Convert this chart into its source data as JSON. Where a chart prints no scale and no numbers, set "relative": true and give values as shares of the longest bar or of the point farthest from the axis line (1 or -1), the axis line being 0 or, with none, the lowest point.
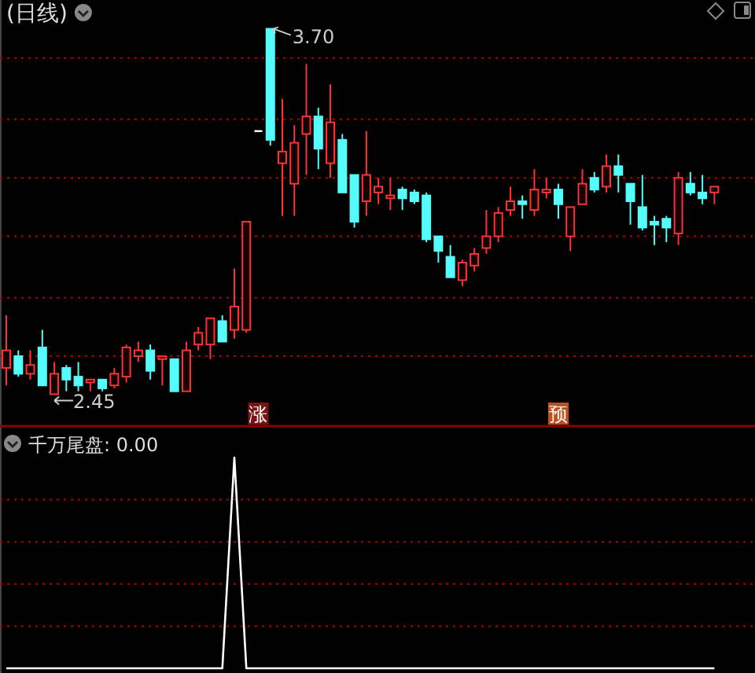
{
  "chart_data": [
    {
      "type": "candlestick",
      "title": "(日线)",
      "categories": [
        null,
        null,
        null,
        null,
        null,
        null,
        null,
        null,
        null,
        null,
        null,
        null,
        null,
        null,
        null,
        null,
        null,
        null,
        null,
        null,
        null,
        null,
        null,
        null,
        null,
        null,
        null,
        null,
        null,
        null,
        null,
        null,
        null,
        null,
        null,
        null,
        null,
        null,
        null,
        null,
        null,
        null,
        null,
        null,
        null,
        null,
        null,
        null,
        null,
        null,
        null,
        null,
        null,
        null,
        null,
        null,
        null,
        null,
        null,
        null
      ],
      "ohlc": [
        [
          2.54,
          2.72,
          2.48,
          2.6
        ],
        [
          2.58,
          2.6,
          2.51,
          2.52
        ],
        [
          2.52,
          2.6,
          2.5,
          2.55
        ],
        [
          2.61,
          2.67,
          2.48,
          2.48
        ],
        [
          2.45,
          2.56,
          2.45,
          2.52
        ],
        [
          2.54,
          2.55,
          2.46,
          2.5
        ],
        [
          2.51,
          2.56,
          2.46,
          2.48
        ],
        [
          2.49,
          2.5,
          2.46,
          2.5
        ],
        [
          2.5,
          2.5,
          2.46,
          2.47
        ],
        [
          2.48,
          2.54,
          2.47,
          2.52
        ],
        [
          2.51,
          2.62,
          2.49,
          2.61
        ],
        [
          2.58,
          2.63,
          2.56,
          2.6
        ],
        [
          2.6,
          2.62,
          2.5,
          2.53
        ],
        [
          2.57,
          2.58,
          2.48,
          2.58
        ],
        [
          2.57,
          2.57,
          2.46,
          2.46
        ],
        [
          2.46,
          2.63,
          2.46,
          2.6
        ],
        [
          2.62,
          2.68,
          2.6,
          2.66
        ],
        [
          2.62,
          2.71,
          2.57,
          2.71
        ],
        [
          2.7,
          2.72,
          2.63,
          2.63
        ],
        [
          2.67,
          2.88,
          2.64,
          2.75
        ],
        [
          2.67,
          3.04,
          2.66,
          3.04
        ],
        [
          3.35,
          3.35,
          3.35,
          3.35
        ],
        [
          3.7,
          3.7,
          3.3,
          3.32
        ],
        [
          3.24,
          3.46,
          3.06,
          3.28
        ],
        [
          3.17,
          3.37,
          3.06,
          3.31
        ],
        [
          3.34,
          3.58,
          3.2,
          3.4
        ],
        [
          3.4,
          3.43,
          3.22,
          3.29
        ],
        [
          3.24,
          3.51,
          3.19,
          3.38
        ],
        [
          3.32,
          3.34,
          3.14,
          3.14
        ],
        [
          3.2,
          3.2,
          3.02,
          3.04
        ],
        [
          3.11,
          3.35,
          3.06,
          3.2
        ],
        [
          3.14,
          3.19,
          3.1,
          3.16
        ],
        [
          3.12,
          3.19,
          3.08,
          3.13
        ],
        [
          3.15,
          3.16,
          3.08,
          3.12
        ],
        [
          3.14,
          3.15,
          3.1,
          3.11
        ],
        [
          3.13,
          3.14,
          2.97,
          2.98
        ],
        [
          2.99,
          2.99,
          2.9,
          2.94
        ],
        [
          2.92,
          2.96,
          2.85,
          2.85
        ],
        [
          2.84,
          2.91,
          2.82,
          2.9
        ],
        [
          2.89,
          2.95,
          2.87,
          2.93
        ],
        [
          2.95,
          3.08,
          2.93,
          2.99
        ],
        [
          2.99,
          3.09,
          2.97,
          3.07
        ],
        [
          3.08,
          3.16,
          3.06,
          3.11
        ],
        [
          3.11,
          3.13,
          3.05,
          3.1
        ],
        [
          3.08,
          3.22,
          3.06,
          3.15
        ],
        [
          3.14,
          3.19,
          3.12,
          3.15
        ],
        [
          3.15,
          3.17,
          3.05,
          3.1
        ],
        [
          2.99,
          3.09,
          2.94,
          3.09
        ],
        [
          3.1,
          3.22,
          3.1,
          3.17
        ],
        [
          3.19,
          3.21,
          3.14,
          3.15
        ],
        [
          3.16,
          3.27,
          3.14,
          3.23
        ],
        [
          3.23,
          3.27,
          3.14,
          3.2
        ],
        [
          3.17,
          3.17,
          3.03,
          3.11
        ],
        [
          3.09,
          3.2,
          3.01,
          3.02
        ],
        [
          3.04,
          3.06,
          2.96,
          3.03
        ],
        [
          3.05,
          3.06,
          2.97,
          3.02
        ],
        [
          3.0,
          3.21,
          2.96,
          3.19
        ],
        [
          3.17,
          3.21,
          3.13,
          3.14
        ],
        [
          3.14,
          3.2,
          3.1,
          3.12
        ],
        [
          3.14,
          3.16,
          3.1,
          3.16
        ]
      ],
      "colors": [
        "#ff3232",
        "#54fcfc",
        "#ff3232",
        "#54fcfc",
        "#ff3232",
        "#54fcfc",
        "#54fcfc",
        "#ff3232",
        "#54fcfc",
        "#ff3232",
        "#ff3232",
        "#ff3232",
        "#54fcfc",
        "#ff3232",
        "#54fcfc",
        "#ff3232",
        "#ff3232",
        "#ff3232",
        "#54fcfc",
        "#ff3232",
        "#ff3232",
        "#ffffff",
        "#54fcfc",
        "#ff3232",
        "#ff3232",
        "#ff3232",
        "#54fcfc",
        "#ff3232",
        "#54fcfc",
        "#54fcfc",
        "#ff3232",
        "#ff3232",
        "#ff3232",
        "#54fcfc",
        "#54fcfc",
        "#54fcfc",
        "#54fcfc",
        "#54fcfc",
        "#ff3232",
        "#ff3232",
        "#ff3232",
        "#ff3232",
        "#ff3232",
        "#54fcfc",
        "#ff3232",
        "#ff3232",
        "#54fcfc",
        "#ff3232",
        "#ff3232",
        "#54fcfc",
        "#ff3232",
        "#54fcfc",
        "#54fcfc",
        "#54fcfc",
        "#54fcfc",
        "#54fcfc",
        "#ff3232",
        "#54fcfc",
        "#54fcfc",
        "#ff3232"
      ],
      "yticks": [
        {
          "value": 2.58,
          "label": null
        },
        {
          "value": 2.78,
          "label": null
        },
        {
          "value": 2.99,
          "label": null
        },
        {
          "value": 3.19,
          "label": null
        },
        {
          "value": 3.39,
          "label": null
        },
        {
          "value": 3.6,
          "label": null
        }
      ],
      "grid": "y",
      "annotations": [
        "3.70",
        "2.45",
        "涨",
        "预"
      ]
    },
    {
      "type": "line",
      "title": "千万尾盘: 0.00",
      "relative": true,
      "color": "#ffffff",
      "ref_lines": [
        {
          "axis": "y",
          "value": 0.2,
          "color": "#b00000",
          "line_style": "dotted"
        },
        {
          "axis": "y",
          "value": 0.4,
          "color": "#b00000",
          "line_style": "dotted"
        },
        {
          "axis": "y",
          "value": 0.6,
          "color": "#b00000",
          "line_style": "dotted"
        },
        {
          "axis": "y",
          "value": 0.8,
          "color": "#b00000",
          "line_style": "dotted"
        }
      ],
      "categories": [
        null,
        null,
        null,
        null,
        null,
        null,
        null,
        null,
        null,
        null,
        null,
        null,
        null,
        null,
        null,
        null,
        null,
        null,
        null,
        null,
        null,
        null,
        null,
        null,
        null,
        null,
        null,
        null,
        null,
        null,
        null,
        null,
        null,
        null,
        null,
        null,
        null,
        null,
        null,
        null,
        null,
        null,
        null,
        null,
        null,
        null,
        null,
        null,
        null,
        null,
        null,
        null,
        null,
        null,
        null,
        null,
        null,
        null,
        null,
        null
      ],
      "values": [
        0,
        0,
        0,
        0,
        0,
        0,
        0,
        0,
        0,
        0,
        0,
        0,
        0,
        0,
        0,
        0,
        0,
        0,
        0,
        1,
        0,
        0,
        0,
        0,
        0,
        0,
        0,
        0,
        0,
        0,
        0,
        0,
        0,
        0,
        0,
        0,
        0,
        0,
        0,
        0,
        0,
        0,
        0,
        0,
        0,
        0,
        0,
        0,
        0,
        0,
        0,
        0,
        0,
        0,
        0,
        0,
        0,
        0,
        0,
        0
      ]
    }
  ]
}
